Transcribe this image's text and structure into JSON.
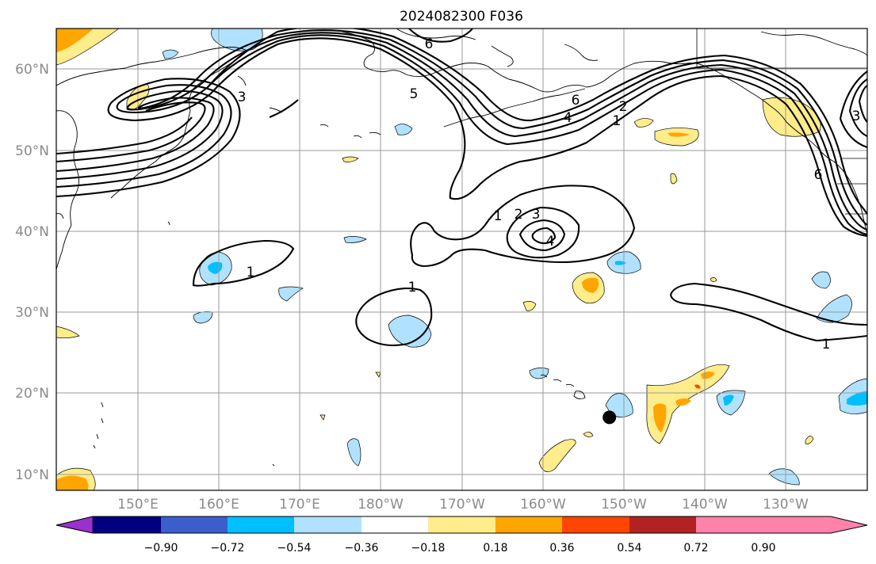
{
  "title": "2024082300 F036",
  "map": {
    "lon_ticks": [
      "150°E",
      "160°E",
      "170°E",
      "180°W",
      "170°W",
      "160°W",
      "150°W",
      "140°W",
      "130°W"
    ],
    "lat_ticks": [
      "60°N",
      "50°N",
      "40°N",
      "30°N",
      "20°N",
      "10°N"
    ],
    "lon_range": [
      140,
      240
    ],
    "lat_range": [
      8,
      65
    ],
    "grid": true,
    "marker": {
      "name": "storm-position",
      "lon": 208.2,
      "lat": 17.0
    }
  },
  "contour_labels": [
    "6",
    "5",
    "3",
    "1",
    "1",
    "2",
    "3",
    "4",
    "1",
    "1",
    "2",
    "4",
    "6",
    "6",
    "3",
    "1"
  ],
  "colorbar": {
    "ticks": [
      "−0.90",
      "−0.72",
      "−0.54",
      "−0.36",
      "−0.18",
      "0.18",
      "0.36",
      "0.54",
      "0.72",
      "0.90"
    ],
    "bins": [
      {
        "color": "#9932cc"
      },
      {
        "color": "#000080"
      },
      {
        "color": "#3a5fcd"
      },
      {
        "color": "#00bfff"
      },
      {
        "color": "#b0e2ff"
      },
      {
        "color": "#ffffff"
      },
      {
        "color": "#ffec8b"
      },
      {
        "color": "#ffa500"
      },
      {
        "color": "#ff4500"
      },
      {
        "color": "#b22222"
      },
      {
        "color": "#ff82ab"
      }
    ]
  },
  "colors": {
    "light_blue": "#b0e2ff",
    "mid_blue": "#00bfff",
    "light_yellow": "#ffec8b",
    "orange": "#ffa500",
    "red_orange": "#ff4500"
  }
}
